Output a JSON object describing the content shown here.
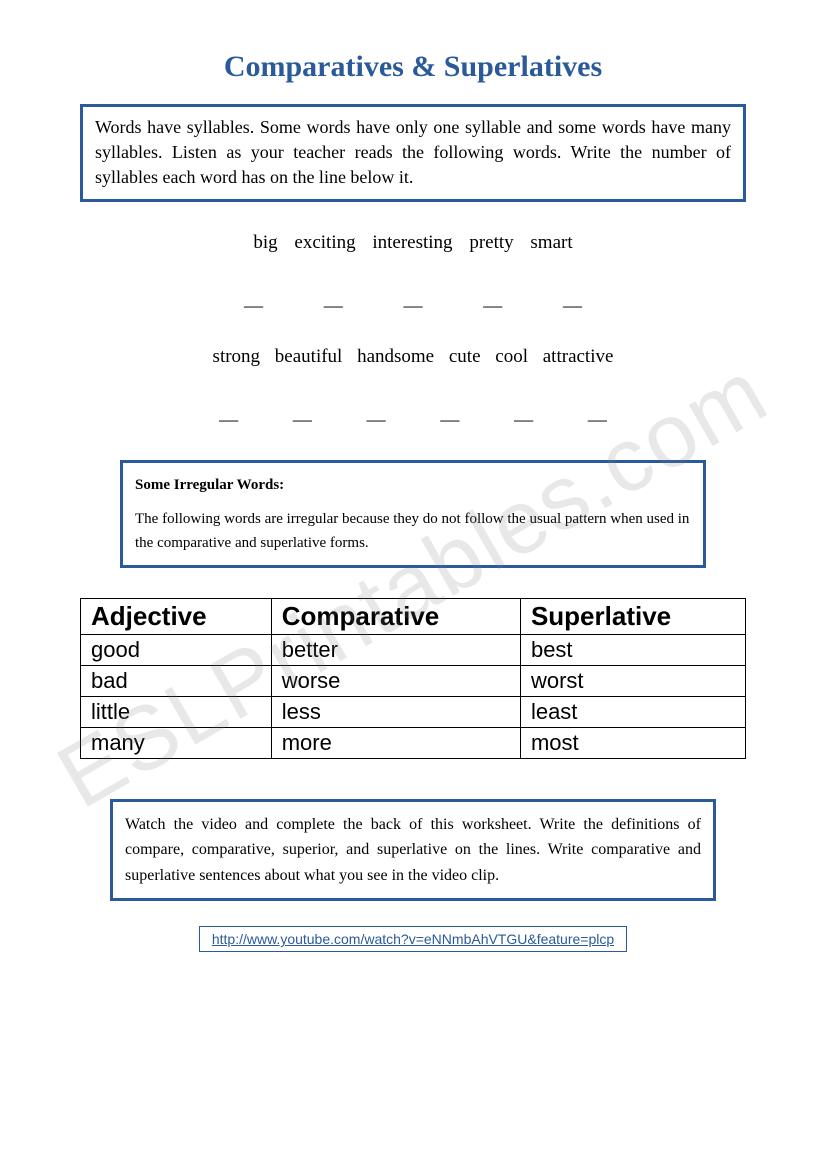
{
  "title": "Comparatives & Superlatives",
  "instruction1": "Words have syllables. Some words have only one syllable and some words have many syllables. Listen as your teacher reads the following words. Write the number of syllables each word has on the line below it.",
  "wordRow1": [
    "big",
    "exciting",
    "interesting",
    "pretty",
    "smart"
  ],
  "blankRow1": [
    "__",
    "__",
    "__",
    "__",
    "__"
  ],
  "wordRow2": [
    "strong",
    "beautiful",
    "handsome",
    "cute",
    "cool",
    "attractive"
  ],
  "blankRow2": [
    "__",
    "__",
    "__",
    "__",
    "__",
    "__"
  ],
  "irregularHeading": "Some Irregular Words:",
  "irregularText": "The following words are irregular because they do not follow the usual pattern when used in the comparative and superlative forms.",
  "table": {
    "headers": [
      "Adjective",
      "Comparative",
      "Superlative"
    ],
    "rows": [
      [
        "good",
        "better",
        "best"
      ],
      [
        "bad",
        "worse",
        "worst"
      ],
      [
        "little",
        "less",
        "least"
      ],
      [
        "many",
        "more",
        "most"
      ]
    ]
  },
  "videoInstruction": "Watch the video and complete the back of this worksheet. Write the definitions of compare, comparative, superior, and superlative on the lines. Write comparative and superlative sentences about what you see in the video clip.",
  "url": "http://www.youtube.com/watch?v=eNNmbAhVTGU&feature=plcp",
  "watermark": "ESLPrintables.com",
  "colors": {
    "titleColor": "#2a5a9a",
    "borderColor": "#2a5a9a",
    "textColor": "#000000",
    "background": "#ffffff",
    "watermarkColor": "rgba(128,128,128,0.18)"
  }
}
